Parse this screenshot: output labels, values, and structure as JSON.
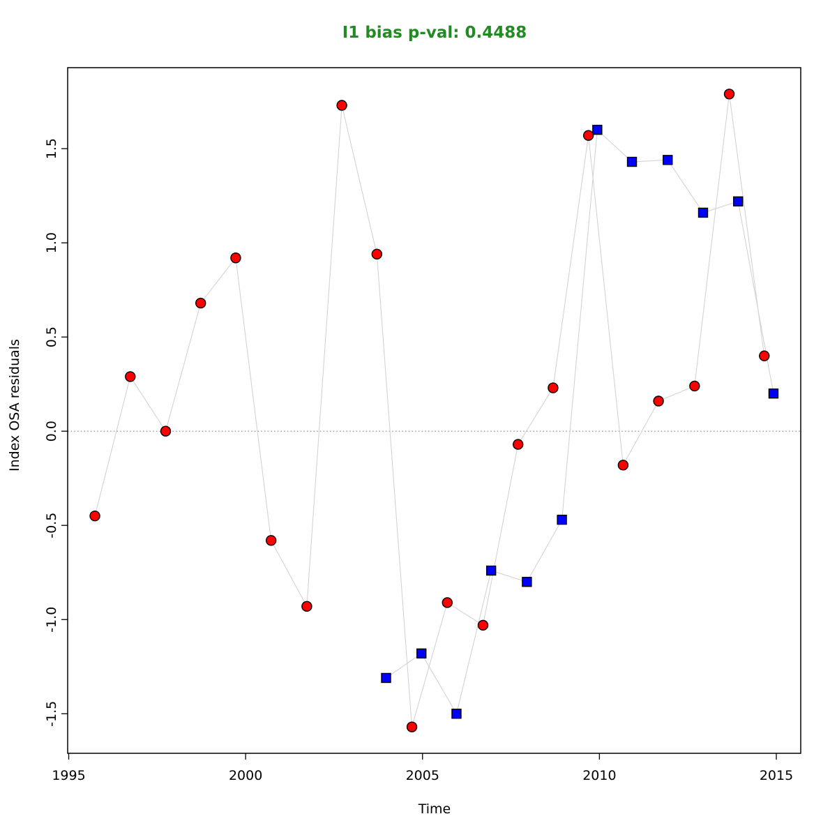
{
  "chart_data": {
    "type": "scatter",
    "title": "I1 bias p-val: 0.4488",
    "title_color": "#228B22",
    "xlabel": "Time",
    "ylabel": "Index OSA residuals",
    "xlim": [
      1994.97,
      2015.69
    ],
    "ylim": [
      -1.71,
      1.93
    ],
    "x_ticks": [
      "1995",
      "2000",
      "2005",
      "2010",
      "2015"
    ],
    "x_tick_values": [
      1995,
      2000,
      2005,
      2010,
      2015
    ],
    "y_ticks": [
      "-1.5",
      "-1.0",
      "-0.5",
      "0.0",
      "0.5",
      "1.0",
      "1.5"
    ],
    "y_tick_values": [
      -1.5,
      -1.0,
      -0.5,
      0.0,
      0.5,
      1.0,
      1.5
    ],
    "grid": false,
    "legend": null,
    "zero_line": {
      "value": 0,
      "style": "dotted",
      "color": "#808080"
    },
    "connector_color": "#D3D3D3",
    "axis_color": "#000000",
    "series": [
      {
        "name": "red-circles",
        "marker": "circle",
        "fill": "#FF0000",
        "stroke": "#000000",
        "points": [
          [
            1995.74,
            -0.45
          ],
          [
            1996.74,
            0.29
          ],
          [
            1997.74,
            0.0
          ],
          [
            1998.73,
            0.68
          ],
          [
            1999.72,
            0.92
          ],
          [
            2000.72,
            -0.58
          ],
          [
            2001.73,
            -0.93
          ],
          [
            2002.72,
            1.73
          ],
          [
            2003.71,
            0.94
          ],
          [
            2004.7,
            -1.57
          ],
          [
            2005.7,
            -0.91
          ],
          [
            2006.71,
            -1.03
          ],
          [
            2007.7,
            -0.07
          ],
          [
            2008.69,
            0.23
          ],
          [
            2009.69,
            1.57
          ],
          [
            2010.67,
            -0.18
          ],
          [
            2011.67,
            0.16
          ],
          [
            2012.69,
            0.24
          ],
          [
            2013.67,
            1.79
          ],
          [
            2014.66,
            0.4
          ]
        ]
      },
      {
        "name": "blue-squares",
        "marker": "square",
        "fill": "#0000FF",
        "stroke": "#000000",
        "points": [
          [
            2003.97,
            -1.31
          ],
          [
            2004.97,
            -1.18
          ],
          [
            2005.96,
            -1.5
          ],
          [
            2006.94,
            -0.74
          ],
          [
            2007.95,
            -0.8
          ],
          [
            2008.94,
            -0.47
          ],
          [
            2009.94,
            1.6
          ],
          [
            2010.92,
            1.43
          ],
          [
            2011.93,
            1.44
          ],
          [
            2012.93,
            1.16
          ],
          [
            2013.92,
            1.22
          ],
          [
            2014.92,
            0.2
          ]
        ]
      }
    ]
  }
}
